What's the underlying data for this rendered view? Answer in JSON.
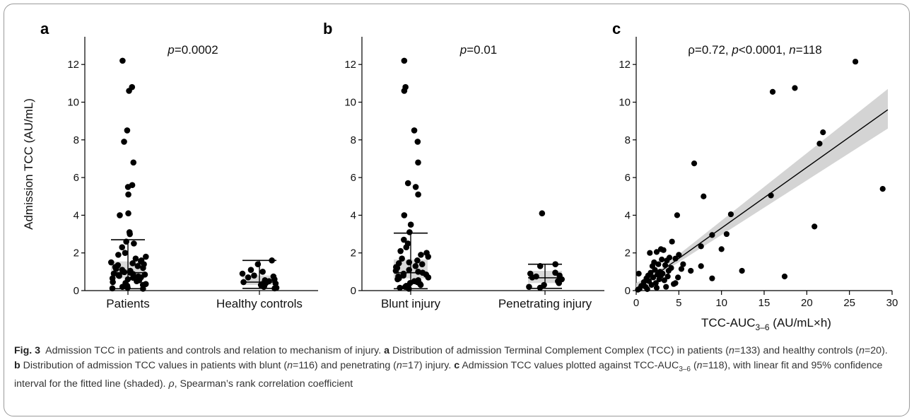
{
  "figure": {
    "label": "Fig. 3",
    "caption_title": "Admission TCC in patients and controls and relation to mechanism of injury.",
    "caption_a_label": "a",
    "caption_a_text": "Distribution of admission Terminal Complement Complex (TCC) in patients (n=133) and healthy controls (n=20).",
    "caption_b_label": "b",
    "caption_b_text": "Distribution of admission TCC values in patients with blunt (n=116) and penetrating (n=17) injury.",
    "caption_c_label": "c",
    "caption_c_text": "Admission TCC values plotted against TCC-AUC3–6 (n=118), with linear fit and 95% confidence interval for the fitted line (shaded). ρ, Spearman’s rank correlation coefficient"
  },
  "colors": {
    "points": "#000000",
    "iqr_box": "#d9d9d9",
    "ci_band": "#d4d4d4",
    "axis": "#000000"
  },
  "chart_data": [
    {
      "panel": "a",
      "type": "scatter",
      "ylabel": "Admission TCC (AU/mL)",
      "stat_label": "p=0.0002",
      "categories": [
        "Patients",
        "Healthy controls"
      ],
      "ylim": [
        0,
        13
      ],
      "yticks": [
        0,
        2,
        4,
        6,
        8,
        10,
        12
      ],
      "groups": [
        {
          "category": "Patients",
          "median": 0.95,
          "q1": 0.65,
          "q3": 1.55,
          "whisker_low": 0.1,
          "whisker_high": 2.7,
          "values": [
            12.2,
            10.8,
            10.6,
            8.5,
            7.9,
            6.8,
            5.6,
            5.5,
            5.1,
            4.1,
            4.0,
            3.1,
            3.0,
            2.6,
            2.5,
            2.3,
            2.0,
            1.9,
            1.8,
            1.7,
            1.6,
            1.55,
            1.5,
            1.45,
            1.4,
            1.35,
            1.3,
            1.25,
            1.2,
            1.15,
            1.1,
            1.05,
            1.0,
            0.98,
            0.95,
            0.9,
            0.88,
            0.85,
            0.8,
            0.78,
            0.75,
            0.7,
            0.68,
            0.65,
            0.6,
            0.55,
            0.5,
            0.45,
            0.4,
            0.35,
            0.3,
            0.25,
            0.2,
            0.15,
            0.12,
            0.1
          ]
        },
        {
          "category": "Healthy controls",
          "median": 0.45,
          "q1": 0.3,
          "q3": 0.8,
          "whisker_low": 0.12,
          "whisker_high": 1.6,
          "values": [
            1.6,
            1.4,
            1.1,
            1.0,
            0.9,
            0.8,
            0.75,
            0.7,
            0.6,
            0.55,
            0.5,
            0.45,
            0.4,
            0.38,
            0.35,
            0.3,
            0.25,
            0.2,
            0.15,
            0.12
          ]
        }
      ]
    },
    {
      "panel": "b",
      "type": "scatter",
      "stat_label": "p=0.01",
      "categories": [
        "Blunt injury",
        "Penetrating injury"
      ],
      "ylim": [
        0,
        13
      ],
      "yticks": [
        0,
        2,
        4,
        6,
        8,
        10,
        12
      ],
      "groups": [
        {
          "category": "Blunt injury",
          "median": 0.95,
          "q1": 0.65,
          "q3": 1.65,
          "whisker_low": 0.1,
          "whisker_high": 3.05,
          "values": [
            12.2,
            10.8,
            10.6,
            8.5,
            7.9,
            6.8,
            5.7,
            5.5,
            5.1,
            4.0,
            3.5,
            3.1,
            2.7,
            2.5,
            2.3,
            2.1,
            2.0,
            1.9,
            1.8,
            1.7,
            1.6,
            1.5,
            1.45,
            1.4,
            1.3,
            1.25,
            1.2,
            1.1,
            1.05,
            1.0,
            0.95,
            0.9,
            0.85,
            0.8,
            0.75,
            0.7,
            0.65,
            0.6,
            0.55,
            0.5,
            0.45,
            0.4,
            0.35,
            0.3,
            0.25,
            0.2,
            0.15,
            0.1
          ]
        },
        {
          "category": "Penetrating injury",
          "median": 0.68,
          "q1": 0.4,
          "q3": 1.05,
          "whisker_low": 0.12,
          "whisker_high": 1.4,
          "values": [
            4.1,
            1.4,
            1.3,
            0.95,
            0.9,
            0.8,
            0.75,
            0.7,
            0.6,
            0.5,
            0.4,
            0.3,
            0.2,
            0.15
          ]
        }
      ]
    },
    {
      "panel": "c",
      "type": "scatter",
      "stat_label": "ρ=0.72, p<0.0001, n=118",
      "xlabel": "TCC-AUC3–6 (AU/mL×h)",
      "xlim": [
        0,
        30
      ],
      "ylim": [
        0,
        13
      ],
      "xticks": [
        0,
        5,
        10,
        15,
        20,
        25,
        30
      ],
      "yticks": [
        0,
        2,
        4,
        6,
        8,
        10,
        12
      ],
      "fit": {
        "x0": 0,
        "y0": 0.1,
        "x1": 29.5,
        "y1": 9.6,
        "ci_low_end": 8.6,
        "ci_high_end": 10.7
      },
      "points": [
        [
          25.7,
          12.15
        ],
        [
          18.6,
          10.75
        ],
        [
          16.0,
          10.55
        ],
        [
          21.9,
          8.4
        ],
        [
          21.5,
          7.8
        ],
        [
          6.8,
          6.75
        ],
        [
          28.9,
          5.4
        ],
        [
          15.8,
          5.05
        ],
        [
          7.9,
          5.0
        ],
        [
          4.8,
          4.0
        ],
        [
          11.1,
          4.05
        ],
        [
          20.9,
          3.4
        ],
        [
          8.9,
          2.95
        ],
        [
          10.6,
          3.0
        ],
        [
          7.6,
          2.35
        ],
        [
          4.2,
          2.6
        ],
        [
          3.2,
          2.15
        ],
        [
          2.9,
          2.2
        ],
        [
          1.6,
          2.0
        ],
        [
          2.4,
          2.05
        ],
        [
          5.0,
          1.9
        ],
        [
          4.6,
          1.7
        ],
        [
          3.9,
          1.75
        ],
        [
          3.6,
          1.6
        ],
        [
          10.0,
          2.2
        ],
        [
          12.4,
          1.05
        ],
        [
          7.6,
          1.3
        ],
        [
          5.3,
          1.15
        ],
        [
          6.4,
          1.05
        ],
        [
          17.4,
          0.75
        ],
        [
          8.9,
          0.65
        ],
        [
          4.9,
          0.7
        ],
        [
          3.0,
          1.65
        ],
        [
          2.1,
          1.5
        ],
        [
          2.6,
          1.4
        ],
        [
          1.9,
          1.3
        ],
        [
          3.4,
          1.35
        ],
        [
          4.1,
          1.2
        ],
        [
          2.2,
          1.1
        ],
        [
          2.8,
          1.0
        ],
        [
          1.7,
          0.95
        ],
        [
          3.1,
          0.9
        ],
        [
          2.5,
          0.85
        ],
        [
          1.4,
          0.8
        ],
        [
          3.7,
          0.75
        ],
        [
          2.0,
          0.7
        ],
        [
          1.2,
          0.65
        ],
        [
          2.7,
          0.6
        ],
        [
          3.3,
          0.55
        ],
        [
          1.5,
          0.5
        ],
        [
          0.9,
          0.45
        ],
        [
          2.3,
          0.4
        ],
        [
          4.4,
          0.35
        ],
        [
          1.8,
          0.3
        ],
        [
          0.6,
          0.25
        ],
        [
          1.1,
          0.2
        ],
        [
          3.5,
          0.2
        ],
        [
          2.4,
          0.15
        ],
        [
          0.4,
          0.1
        ],
        [
          1.3,
          0.08
        ],
        [
          0.2,
          0.05
        ],
        [
          0.3,
          0.9
        ],
        [
          4.6,
          0.4
        ],
        [
          5.5,
          1.4
        ],
        [
          3.8,
          1.05
        ],
        [
          2.9,
          0.8
        ]
      ]
    }
  ]
}
